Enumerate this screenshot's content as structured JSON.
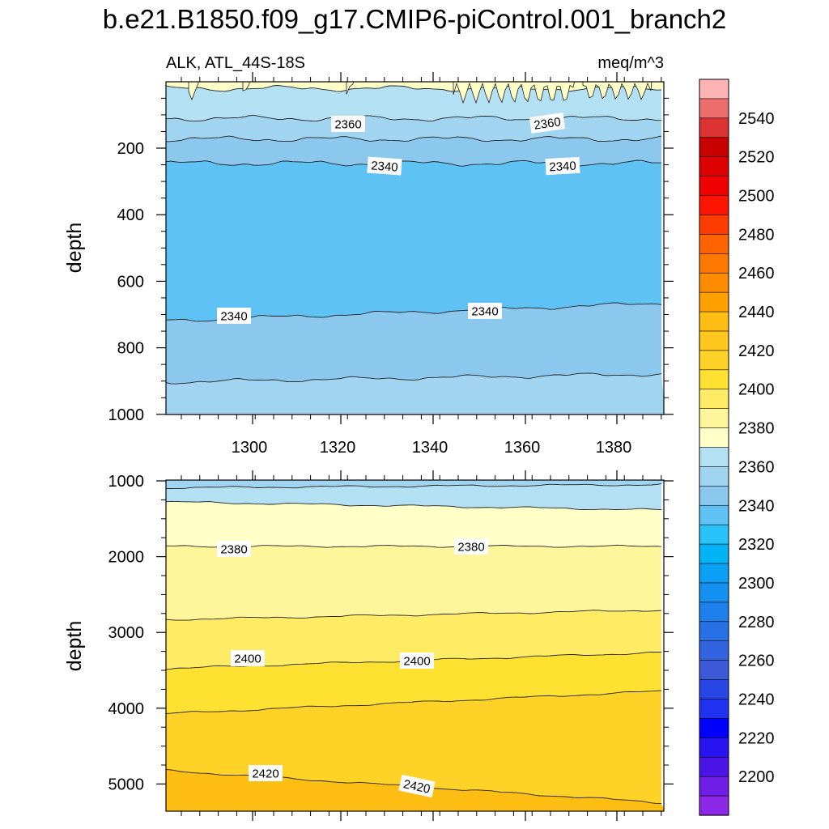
{
  "chart_data": [
    {
      "type": "contour",
      "panel": "upper",
      "title": "b.e21.B1850.f09_g17.CMIP6-piControl.001_branch2",
      "left_string": "ALK, ATL_44S-18S",
      "right_string": "meq/m^3",
      "xlabel": "",
      "ylabel": "depth",
      "xlim": [
        1282,
        1391
      ],
      "ylim": [
        0,
        1000
      ],
      "y_reversed": true,
      "x_ticks": [
        "1300",
        "1320",
        "1340",
        "1360",
        "1380"
      ],
      "y_ticks": [
        "200",
        "400",
        "600",
        "800",
        "1000"
      ],
      "contour_labels": [
        "2360",
        "2360",
        "2340",
        "2340",
        "2340",
        "2340"
      ],
      "bands": [
        {
          "level_lo": 2370,
          "level_hi": 2380,
          "color": "#ffffc8",
          "depth_top": 0,
          "depth_bottom": 20
        },
        {
          "level_lo": 2360,
          "level_hi": 2370,
          "color": "#b4e0f4",
          "depth_top": 20,
          "depth_bottom": 110
        },
        {
          "level_lo": 2350,
          "level_hi": 2360,
          "color": "#a0d4f0",
          "depth_top": 110,
          "depth_bottom": 172
        },
        {
          "level_lo": 2340,
          "level_hi": 2350,
          "color": "#8cc8ee",
          "depth_top": 172,
          "depth_bottom": 245
        },
        {
          "level_lo": 2330,
          "level_hi": 2340,
          "color": "#5fc2f4",
          "depth_top": 245,
          "depth_bottom": 692
        },
        {
          "level_lo": 2340,
          "level_hi": 2350,
          "color": "#8cc8ee",
          "depth_top": 692,
          "depth_bottom": 890
        },
        {
          "level_lo": 2350,
          "level_hi": 2360,
          "color": "#a0d4f0",
          "depth_top": 890,
          "depth_bottom": 1000
        }
      ]
    },
    {
      "type": "contour",
      "panel": "lower",
      "xlabel": "",
      "ylabel": "depth",
      "xlim": [
        1282,
        1391
      ],
      "ylim": [
        1000,
        5350
      ],
      "y_reversed": true,
      "y_ticks": [
        "1000",
        "2000",
        "3000",
        "4000",
        "5000"
      ],
      "contour_labels": [
        "2380",
        "2380",
        "2400",
        "2400",
        "2420",
        "2420"
      ],
      "bands": [
        {
          "level_lo": 2360,
          "level_hi": 2370,
          "color": "#a0d4f0",
          "depth_top": 1000,
          "depth_bottom": 1080
        },
        {
          "level_lo": 2370,
          "level_hi": 2380,
          "color": "#b4e0f4",
          "depth_top": 1080,
          "depth_bottom": 1340
        },
        {
          "level_lo": 2380,
          "level_hi": 2390,
          "color": "#ffffc8",
          "depth_top": 1340,
          "depth_bottom": 1870
        },
        {
          "level_lo": 2390,
          "level_hi": 2400,
          "color": "#fff59a",
          "depth_top": 1870,
          "depth_bottom": 2770
        },
        {
          "level_lo": 2400,
          "level_hi": 2410,
          "color": "#ffec64",
          "depth_top": 2770,
          "depth_bottom": 3370
        },
        {
          "level_lo": 2410,
          "level_hi": 2420,
          "color": "#ffe132",
          "depth_top": 3370,
          "depth_bottom": 3920
        },
        {
          "level_lo": 2420,
          "level_hi": 2430,
          "color": "#ffd228",
          "depth_top": 3920,
          "depth_bottom": 4900
        },
        {
          "level_lo": 2430,
          "level_hi": 2440,
          "color": "#ffbe14",
          "depth_top": 4900,
          "depth_bottom": 5350
        }
      ]
    }
  ],
  "colorbar": {
    "labels": [
      "2540",
      "2520",
      "2500",
      "2480",
      "2460",
      "2440",
      "2420",
      "2400",
      "2380",
      "2360",
      "2340",
      "2320",
      "2300",
      "2280",
      "2260",
      "2240",
      "2220",
      "2200"
    ],
    "colors": [
      "#ffb4b4",
      "#ee6e6e",
      "#dc3232",
      "#c80000",
      "#dc0000",
      "#f00000",
      "#ff1400",
      "#ff3c00",
      "#ff6400",
      "#ff7800",
      "#ff8c00",
      "#ffa000",
      "#ffbe14",
      "#ffc81e",
      "#ffd228",
      "#ffe132",
      "#ffec64",
      "#fff59a",
      "#ffffc8",
      "#b4e0f4",
      "#a0d4f0",
      "#8cc8ee",
      "#5fc2f4",
      "#28c3fa",
      "#00b4f6",
      "#0aa0f5",
      "#1490f0",
      "#1e80ec",
      "#2870e6",
      "#3264e0",
      "#3c5ad8",
      "#2846e6",
      "#1e32f0",
      "#0000ff",
      "#2814f0",
      "#4b14e6",
      "#6e1ee6",
      "#8c28e6"
    ]
  }
}
